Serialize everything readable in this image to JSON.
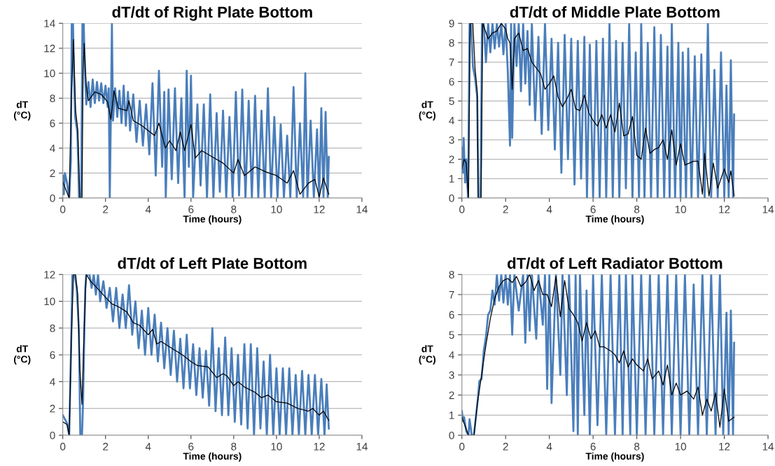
{
  "chart_data": [
    {
      "type": "line",
      "title": "dT/dt of Right Plate Bottom",
      "xlabel": "Time (hours)",
      "ylabel": "dT\n(°C)",
      "xlim": [
        0,
        14
      ],
      "xticks": [
        0,
        2,
        4,
        6,
        8,
        10,
        12,
        14
      ],
      "ylim": [
        0,
        14
      ],
      "yticks": [
        0,
        2,
        4,
        6,
        8,
        10,
        12,
        14
      ],
      "grid": "y",
      "legend": false,
      "series": [
        {
          "color": "#4a7ebb",
          "x": [
            0,
            0.05,
            0.1,
            0.2,
            0.3,
            0.38,
            0.42,
            0.48,
            0.52,
            0.58,
            0.68,
            0.72,
            0.76,
            0.86,
            0.92,
            0.98,
            1.04,
            1.1,
            1.2,
            1.3,
            1.4,
            1.5,
            1.6,
            1.7,
            1.8,
            1.9,
            2.0,
            2.1,
            2.15,
            2.2,
            2.25,
            2.3,
            2.35,
            2.45,
            2.55,
            2.65,
            2.75,
            2.85,
            2.95,
            3.05,
            3.15,
            3.3,
            3.45,
            3.6,
            3.75,
            3.9,
            4.05,
            4.2,
            4.35,
            4.5,
            4.65,
            4.75,
            4.82,
            4.95,
            5.1,
            5.25,
            5.4,
            5.55,
            5.7,
            5.8,
            5.9,
            6.0,
            6.1,
            6.3,
            6.45,
            6.6,
            6.75,
            6.9,
            7.05,
            7.2,
            7.35,
            7.5,
            7.65,
            7.8,
            7.95,
            8.1,
            8.25,
            8.4,
            8.55,
            8.7,
            8.85,
            9.0,
            9.15,
            9.3,
            9.45,
            9.6,
            9.75,
            9.9,
            10.05,
            10.2,
            10.35,
            10.5,
            10.65,
            10.8,
            10.95,
            11.1,
            11.25,
            11.35,
            11.45,
            11.6,
            11.75,
            11.9,
            12.0,
            12.1,
            12.2,
            12.3,
            12.4,
            12.45
          ],
          "values": [
            1.8,
            0.3,
            2.0,
            1.2,
            0,
            3,
            14,
            14,
            10,
            6.5,
            5.3,
            3,
            0,
            0,
            14,
            14,
            10,
            7.5,
            9.3,
            7.3,
            9.5,
            7.6,
            9.3,
            7.8,
            9.2,
            7.6,
            9.0,
            7.3,
            8.8,
            0,
            6.5,
            14,
            6.2,
            8.8,
            6.5,
            8.6,
            6.0,
            9.0,
            5.8,
            8.5,
            5.4,
            8.3,
            4.5,
            7.8,
            4.2,
            7.5,
            3.5,
            9.2,
            1.8,
            10.2,
            2.5,
            8.5,
            0,
            8.7,
            1.5,
            8.8,
            1.2,
            8.0,
            0,
            10.2,
            2.5,
            9.8,
            0,
            7.5,
            1.0,
            7.5,
            0,
            8.3,
            0,
            6.8,
            0.5,
            7.0,
            0,
            6.5,
            0,
            8.5,
            0.2,
            8.7,
            0,
            7.8,
            0,
            8.2,
            0,
            7.0,
            0,
            8.8,
            0,
            6.5,
            0,
            5.9,
            0,
            5.0,
            0,
            8.9,
            0,
            6.0,
            0,
            10,
            0,
            6.2,
            0,
            5.5,
            0,
            7.2,
            0,
            6.9,
            0,
            3.3
          ]
        },
        {
          "color": "#000000",
          "x": [
            0,
            0.3,
            0.4,
            0.5,
            0.6,
            0.7,
            0.75,
            0.8,
            0.9,
            0.95,
            1.0,
            1.1,
            1.2,
            1.5,
            1.8,
            2.1,
            2.25,
            2.4,
            2.6,
            3.0,
            3.1,
            3.3,
            3.7,
            4.0,
            4.3,
            4.5,
            4.8,
            5.0,
            5.3,
            5.5,
            5.7,
            6.0,
            6.2,
            6.5,
            7.0,
            7.5,
            8.0,
            8.2,
            8.5,
            9.0,
            9.5,
            10.0,
            10.5,
            10.8,
            11.1,
            11.5,
            11.8,
            12.0,
            12.2,
            12.45
          ],
          "values": [
            1.3,
            0,
            8,
            12.7,
            7,
            5.5,
            3,
            0,
            0,
            10,
            12.4,
            9,
            7.8,
            8.5,
            8.3,
            7.7,
            6.3,
            8.6,
            7.2,
            7,
            7.8,
            6.2,
            5.8,
            5.4,
            5,
            6,
            4,
            4.6,
            3.8,
            5.3,
            3.8,
            5.9,
            3.2,
            3.8,
            3.3,
            2.8,
            2,
            3.1,
            1.8,
            2.5,
            2.1,
            1.8,
            1.2,
            2.2,
            0.3,
            1.2,
            1.5,
            0.1,
            1.6,
            0.3
          ]
        }
      ]
    },
    {
      "type": "line",
      "title": "dT/dt of Middle Plate Bottom",
      "xlabel": "Time (hours)",
      "ylabel": "dT\n(°C)",
      "xlim": [
        0,
        14
      ],
      "xticks": [
        0,
        2,
        4,
        6,
        8,
        10,
        12,
        14
      ],
      "ylim": [
        0,
        9
      ],
      "yticks": [
        0,
        1,
        2,
        3,
        4,
        5,
        6,
        7,
        8,
        9
      ],
      "grid": "y",
      "legend": false,
      "series": [
        {
          "color": "#4a7ebb",
          "x": [
            0,
            0.05,
            0.08,
            0.15,
            0.2,
            0.28,
            0.35,
            0.42,
            0.5,
            0.6,
            0.7,
            0.75,
            0.85,
            0.92,
            1.0,
            1.1,
            1.2,
            1.3,
            1.4,
            1.5,
            1.6,
            1.7,
            1.8,
            1.9,
            2.0,
            2.1,
            2.2,
            2.25,
            2.3,
            2.4,
            2.5,
            2.6,
            2.7,
            2.8,
            2.9,
            3.0,
            3.1,
            3.2,
            3.35,
            3.5,
            3.65,
            3.8,
            3.95,
            4.1,
            4.25,
            4.4,
            4.55,
            4.7,
            4.85,
            5.0,
            5.15,
            5.3,
            5.45,
            5.6,
            5.72,
            5.85,
            6.0,
            6.15,
            6.3,
            6.45,
            6.6,
            6.75,
            6.9,
            7.05,
            7.2,
            7.35,
            7.5,
            7.65,
            7.8,
            7.95,
            8.1,
            8.2,
            8.35,
            8.5,
            8.65,
            8.8,
            8.95,
            9.1,
            9.25,
            9.4,
            9.5,
            9.6,
            9.75,
            9.9,
            10.0,
            10.1,
            10.25,
            10.35,
            10.5,
            10.65,
            10.8,
            10.95,
            11.1,
            11.25,
            11.4,
            11.55,
            11.7,
            11.85,
            12.0,
            12.1,
            12.2,
            12.3,
            12.4,
            12.45
          ],
          "values": [
            2.6,
            1.3,
            3.1,
            0.8,
            2.0,
            0,
            9,
            9,
            6.8,
            6.2,
            5.2,
            0,
            0,
            9,
            9,
            7.0,
            9,
            7.5,
            9,
            7.7,
            9,
            7.8,
            9,
            7.4,
            9,
            6.5,
            2.7,
            9,
            3.1,
            9,
            6.8,
            9,
            5.5,
            9,
            5.9,
            8.6,
            4.8,
            9,
            4.0,
            8.3,
            3.3,
            9,
            3.5,
            8.2,
            2.5,
            8.0,
            1.3,
            8.4,
            2.0,
            8.2,
            0.7,
            8.1,
            1.0,
            8.3,
            0,
            7.9,
            0,
            8.1,
            0,
            8.2,
            0,
            9,
            0,
            8.1,
            0,
            8.0,
            0.5,
            9,
            0,
            7.5,
            0,
            9,
            0,
            8.0,
            0,
            8.8,
            0,
            8.4,
            0,
            7.8,
            0,
            9,
            0,
            8.0,
            0,
            7.5,
            0,
            7.7,
            0,
            7.3,
            0,
            7.4,
            0,
            9,
            0,
            6.6,
            0,
            7.5,
            0,
            5.8,
            0,
            7.1,
            0,
            4.3
          ]
        },
        {
          "color": "#000000",
          "x": [
            0,
            0.1,
            0.2,
            0.3,
            0.38,
            0.5,
            0.6,
            0.7,
            0.75,
            0.88,
            0.95,
            1.2,
            1.4,
            1.6,
            1.8,
            2.0,
            2.1,
            2.2,
            2.3,
            2.4,
            2.6,
            2.8,
            3.0,
            3.2,
            3.4,
            3.6,
            3.8,
            4.0,
            4.2,
            4.4,
            4.6,
            4.8,
            5.0,
            5.2,
            5.4,
            5.6,
            5.8,
            6.0,
            6.2,
            6.4,
            6.6,
            6.8,
            7.0,
            7.2,
            7.4,
            7.6,
            7.8,
            8.0,
            8.2,
            8.4,
            8.6,
            8.8,
            9.0,
            9.2,
            9.4,
            9.6,
            9.8,
            10.0,
            10.2,
            10.6,
            10.8,
            11.0,
            11.1,
            11.3,
            11.5,
            11.7,
            12.0,
            12.2,
            12.3,
            12.45
          ],
          "values": [
            1.5,
            2.0,
            1.8,
            0,
            9,
            9,
            6.7,
            5.5,
            0,
            0,
            9,
            8.2,
            8.5,
            8.6,
            9,
            8.7,
            8.2,
            8.0,
            5.6,
            8.2,
            8.5,
            7.6,
            7.7,
            7.0,
            6.7,
            6.4,
            5.6,
            5.9,
            6.3,
            5.2,
            4.7,
            5.1,
            5.6,
            4.6,
            4.5,
            5.3,
            4.4,
            4.0,
            3.7,
            4.3,
            3.6,
            4.3,
            3.4,
            4.9,
            3.2,
            3.3,
            4.2,
            2.2,
            2.0,
            3.6,
            2.3,
            2.5,
            2.6,
            3.0,
            2.0,
            3.5,
            1.7,
            2.8,
            1.7,
            1.9,
            1.9,
            0.2,
            2.3,
            0.1,
            1.8,
            0.5,
            1.5,
            0.8,
            1.4,
            0.1
          ]
        }
      ]
    },
    {
      "type": "line",
      "title": "dT/dt of Left Plate Bottom",
      "xlabel": "Time (hours)",
      "ylabel": "dT\n(°C)",
      "xlim": [
        0,
        14
      ],
      "xticks": [
        0,
        2,
        4,
        6,
        8,
        10,
        12,
        14
      ],
      "ylim": [
        0,
        12
      ],
      "yticks": [
        0,
        2,
        4,
        6,
        8,
        10,
        12
      ],
      "grid": "y",
      "legend": false,
      "series": [
        {
          "color": "#4a7ebb",
          "x": [
            0,
            0.1,
            0.2,
            0.3,
            0.38,
            0.45,
            0.55,
            0.65,
            0.75,
            0.82,
            0.9,
            0.95,
            1.05,
            1.1,
            1.25,
            1.35,
            1.45,
            1.55,
            1.65,
            1.75,
            1.9,
            2.05,
            2.2,
            2.35,
            2.5,
            2.65,
            2.8,
            2.95,
            3.1,
            3.25,
            3.4,
            3.55,
            3.7,
            3.85,
            4.0,
            4.15,
            4.3,
            4.45,
            4.6,
            4.75,
            4.9,
            5.05,
            5.2,
            5.35,
            5.5,
            5.65,
            5.8,
            5.95,
            6.1,
            6.25,
            6.4,
            6.55,
            6.7,
            6.85,
            7.0,
            7.15,
            7.3,
            7.45,
            7.6,
            7.75,
            7.9,
            8.05,
            8.2,
            8.35,
            8.5,
            8.65,
            8.8,
            8.95,
            9.1,
            9.25,
            9.4,
            9.55,
            9.7,
            9.85,
            10.0,
            10.15,
            10.3,
            10.45,
            10.6,
            10.75,
            10.9,
            11.05,
            11.2,
            11.35,
            11.5,
            11.65,
            11.8,
            11.95,
            12.1,
            12.25,
            12.35,
            12.45
          ],
          "values": [
            1.5,
            1.2,
            0.9,
            0,
            6,
            12,
            12,
            11,
            8,
            0,
            0,
            2.5,
            11,
            12,
            12,
            11,
            12,
            10.5,
            12,
            10.0,
            11.5,
            9.5,
            11.0,
            8.5,
            11.0,
            8.0,
            10.5,
            8.0,
            11.2,
            7.5,
            10.0,
            6.5,
            9.3,
            6.0,
            9.5,
            6.0,
            9.0,
            5.5,
            8.4,
            5.0,
            8.0,
            4.5,
            7.8,
            4.0,
            7.2,
            3.5,
            7.5,
            3.5,
            6.8,
            3.0,
            6.5,
            2.8,
            6.3,
            2.2,
            8.0,
            1.8,
            6.5,
            1.5,
            7.3,
            1.5,
            6.5,
            1.0,
            6.0,
            0.8,
            6.8,
            0.5,
            6.8,
            0,
            6.5,
            0.5,
            5.5,
            0,
            6.0,
            0,
            5.0,
            0,
            5.0,
            0,
            5.0,
            0,
            4.5,
            0,
            4.8,
            0,
            4.5,
            0,
            4.5,
            0,
            4.2,
            0,
            3.8,
            0.5
          ]
        },
        {
          "color": "#000000",
          "x": [
            0,
            0.2,
            0.3,
            0.4,
            0.5,
            0.6,
            0.7,
            0.8,
            0.9,
            1.0,
            1.1,
            1.3,
            1.6,
            2.0,
            2.3,
            2.6,
            3.0,
            3.3,
            3.6,
            4.0,
            4.2,
            4.4,
            4.6,
            5.0,
            5.3,
            5.6,
            6.0,
            6.3,
            6.8,
            7.0,
            7.2,
            7.5,
            7.7,
            8.0,
            8.2,
            8.5,
            9.0,
            9.3,
            9.6,
            10.0,
            10.5,
            11.0,
            11.5,
            11.7,
            12.0,
            12.2,
            12.45
          ],
          "values": [
            1.0,
            0.8,
            0,
            7,
            12,
            12,
            10.5,
            5,
            2.3,
            8,
            12,
            11.5,
            11.0,
            10.3,
            9.8,
            9.6,
            9.2,
            8.4,
            8.2,
            7.5,
            7.9,
            6.8,
            7.0,
            6.6,
            6.3,
            6.0,
            5.5,
            5.2,
            5.1,
            4.7,
            4.3,
            4.6,
            4.4,
            3.7,
            4.0,
            3.6,
            3.2,
            2.8,
            3.0,
            2.5,
            2.4,
            2.0,
            1.8,
            2.0,
            1.5,
            1.8,
            1.1
          ]
        }
      ]
    },
    {
      "type": "line",
      "title": "dT/dt of Left Radiator Bottom",
      "xlabel": "Time (hours)",
      "ylabel": "dT\n(°C)",
      "xlim": [
        0,
        14
      ],
      "xticks": [
        0,
        2,
        4,
        6,
        8,
        10,
        12,
        14
      ],
      "ylim": [
        0,
        8
      ],
      "yticks": [
        0,
        1,
        2,
        3,
        4,
        5,
        6,
        7,
        8
      ],
      "grid": "y",
      "legend": false,
      "series": [
        {
          "color": "#4a7ebb",
          "x": [
            0,
            0.05,
            0.1,
            0.2,
            0.3,
            0.35,
            0.45,
            0.55,
            0.7,
            0.8,
            0.9,
            1.0,
            1.1,
            1.2,
            1.3,
            1.4,
            1.5,
            1.6,
            1.7,
            1.8,
            1.9,
            2.0,
            2.1,
            2.2,
            2.3,
            2.4,
            2.6,
            2.8,
            2.9,
            3.0,
            3.1,
            3.2,
            3.4,
            3.5,
            3.7,
            3.8,
            3.9,
            4.0,
            4.1,
            4.3,
            4.5,
            4.6,
            4.8,
            4.9,
            5.1,
            5.2,
            5.3,
            5.4,
            5.6,
            5.7,
            5.85,
            6.0,
            6.2,
            6.4,
            6.6,
            6.8,
            7.0,
            7.2,
            7.35,
            7.5,
            7.7,
            7.8,
            8.0,
            8.2,
            8.4,
            8.6,
            8.8,
            9.0,
            9.2,
            9.4,
            9.6,
            9.8,
            10.0,
            10.2,
            10.4,
            10.6,
            10.8,
            11.0,
            11.2,
            11.4,
            11.6,
            11.8,
            11.95,
            12.1,
            12.2,
            12.3,
            12.4,
            12.45
          ],
          "values": [
            1.2,
            0.7,
            0.9,
            0.2,
            0,
            0.8,
            0,
            0,
            1.5,
            2.7,
            2.8,
            4.2,
            4.9,
            6.0,
            6.2,
            7.2,
            6.5,
            8,
            6.7,
            8,
            6.6,
            8,
            6.5,
            8,
            5.0,
            8,
            6.2,
            8,
            4.6,
            8,
            5.2,
            8,
            4.8,
            8,
            5.5,
            8,
            2.3,
            8,
            1.6,
            8,
            3.0,
            8,
            2.0,
            8,
            0.2,
            8,
            0,
            8,
            1.0,
            7.2,
            0,
            8,
            0.5,
            8,
            0,
            8,
            0,
            8,
            0,
            8,
            0,
            8,
            0,
            8,
            0,
            8,
            0,
            8,
            0,
            8,
            0,
            8,
            0,
            8,
            0,
            7.5,
            0,
            8,
            0,
            8,
            0,
            8,
            0,
            6.1,
            0,
            6.2,
            0,
            4.6
          ]
        },
        {
          "color": "#000000",
          "x": [
            0,
            0.2,
            0.3,
            0.55,
            0.7,
            0.9,
            1.1,
            1.3,
            1.5,
            1.7,
            1.9,
            2.1,
            2.3,
            2.5,
            2.7,
            2.9,
            3.0,
            3.1,
            3.3,
            3.5,
            3.7,
            3.9,
            4.1,
            4.3,
            4.5,
            4.7,
            4.9,
            5.1,
            5.3,
            5.5,
            5.7,
            5.9,
            6.1,
            6.3,
            6.5,
            6.8,
            7.0,
            7.2,
            7.4,
            7.6,
            7.8,
            8.0,
            8.3,
            8.5,
            8.7,
            9.0,
            9.2,
            9.4,
            9.6,
            9.8,
            10.0,
            10.3,
            10.6,
            10.8,
            11.0,
            11.2,
            11.4,
            11.6,
            11.8,
            12.0,
            12.2,
            12.45
          ],
          "values": [
            0.9,
            0.3,
            0,
            0,
            1.5,
            3.0,
            4.5,
            5.8,
            6.8,
            7.4,
            7.7,
            7.8,
            7.6,
            7.9,
            7.4,
            7.6,
            7.8,
            8.0,
            7.2,
            7.7,
            7.0,
            7.0,
            6.4,
            7.9,
            5.9,
            7.7,
            6.3,
            6.0,
            5.6,
            4.7,
            5.6,
            4.8,
            5.2,
            4.4,
            4.4,
            4.2,
            4.0,
            3.6,
            4.2,
            3.4,
            3.8,
            3.5,
            3.2,
            3.8,
            2.8,
            3.2,
            2.5,
            3.5,
            2.0,
            2.6,
            2.0,
            2.2,
            1.8,
            2.4,
            1.0,
            1.8,
            1.2,
            2.1,
            0.4,
            2.3,
            0.7,
            0.9
          ]
        }
      ]
    }
  ]
}
